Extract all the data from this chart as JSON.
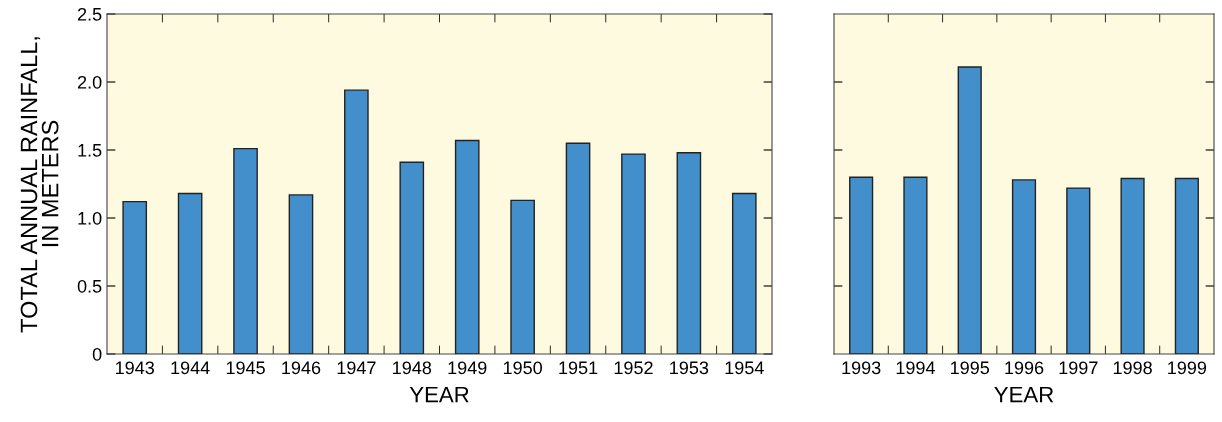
{
  "chart_data": [
    {
      "type": "bar",
      "xlabel": "YEAR",
      "ylabel": "TOTAL ANNUAL RAINFALL,\nIN METERS",
      "categories": [
        "1943",
        "1944",
        "1945",
        "1946",
        "1947",
        "1948",
        "1949",
        "1950",
        "1951",
        "1952",
        "1953",
        "1954"
      ],
      "values": [
        1.12,
        1.18,
        1.51,
        1.17,
        1.94,
        1.41,
        1.57,
        1.13,
        1.55,
        1.47,
        1.48,
        1.18
      ],
      "color": "#428fcc",
      "ylim": [
        0,
        2.5
      ],
      "yticks": [
        {
          "value": 0,
          "label": "0"
        },
        {
          "value": 0.5,
          "label": "0.5"
        },
        {
          "value": 1.0,
          "label": "1.0"
        },
        {
          "value": 1.5,
          "label": "1.5"
        },
        {
          "value": 2.0,
          "label": "2.0"
        },
        {
          "value": 2.5,
          "label": "2.5"
        }
      ],
      "grid": false
    },
    {
      "type": "bar",
      "xlabel": "YEAR",
      "categories": [
        "1993",
        "1994",
        "1995",
        "1996",
        "1997",
        "1998",
        "1999"
      ],
      "values": [
        1.3,
        1.3,
        2.11,
        1.28,
        1.22,
        1.29,
        1.29
      ],
      "color": "#428fcc",
      "ylim": [
        0,
        2.5
      ],
      "yticks": [
        {
          "value": 0.5,
          "label": null
        },
        {
          "value": 1.0,
          "label": null
        },
        {
          "value": 1.5,
          "label": null
        },
        {
          "value": 2.0,
          "label": null
        }
      ],
      "tick_labels": "x",
      "grid": false
    }
  ]
}
